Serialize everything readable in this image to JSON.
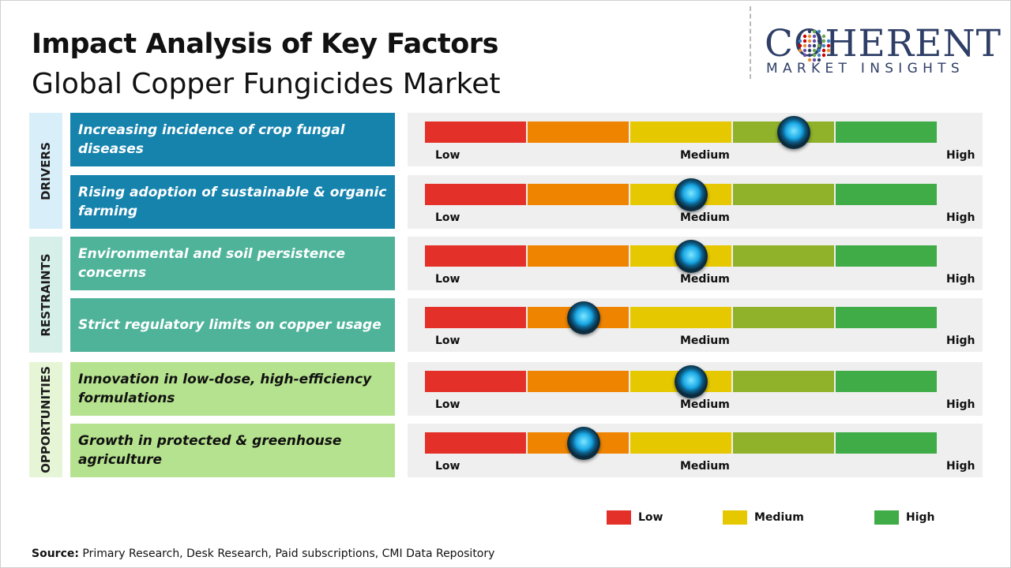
{
  "header": {
    "title": "Impact Analysis of Key Factors",
    "subtitle": "Global Copper Fungicides Market"
  },
  "logo": {
    "main": "COHERENT",
    "sub": "MARKET INSIGHTS"
  },
  "categories": [
    {
      "label": "DRIVERS",
      "color": "#d8eef9"
    },
    {
      "label": "RESTRAINTS",
      "color": "#d6efe9"
    },
    {
      "label": "OPPORTUNITIES",
      "color": "#e6f5d6"
    }
  ],
  "scale_colors": [
    "#e3312a",
    "#ef8400",
    "#e6c800",
    "#8fb22a",
    "#3fac48"
  ],
  "scale_labels": {
    "low": "Low",
    "medium": "Medium",
    "high": "High"
  },
  "factors": [
    {
      "label": "Increasing incidence of crop fungal diseases",
      "category": "DRIVERS",
      "bg": "#1683ad",
      "text_color": "#ffffff"
    },
    {
      "label": "Rising adoption of sustainable & organic farming",
      "category": "DRIVERS",
      "bg": "#1683ad",
      "text_color": "#ffffff"
    },
    {
      "label": "Environmental and soil persistence concerns",
      "category": "RESTRAINTS",
      "bg": "#4fb39a",
      "text_color": "#ffffff"
    },
    {
      "label": "Strict regulatory limits on copper usage",
      "category": "RESTRAINTS",
      "bg": "#4fb39a",
      "text_color": "#ffffff"
    },
    {
      "label": "Innovation in low-dose, high-efficiency formulations",
      "category": "OPPORTUNITIES",
      "bg": "#b5e28e",
      "text_color": "#111111"
    },
    {
      "label": "Growth in protected & greenhouse agriculture",
      "category": "OPPORTUNITIES",
      "bg": "#b5e28e",
      "text_color": "#111111"
    }
  ],
  "chart_data": {
    "type": "gauge",
    "scale": [
      "Low",
      "Medium",
      "High"
    ],
    "scale_range": [
      0,
      1
    ],
    "series": [
      {
        "name": "Increasing incidence of crop fungal diseases",
        "value": 0.72
      },
      {
        "name": "Rising adoption of sustainable & organic farming",
        "value": 0.52
      },
      {
        "name": "Environmental and soil persistence concerns",
        "value": 0.52
      },
      {
        "name": "Strict regulatory limits on copper usage",
        "value": 0.31
      },
      {
        "name": "Innovation in low-dose, high-efficiency formulations",
        "value": 0.52
      },
      {
        "name": "Growth in protected & greenhouse agriculture",
        "value": 0.31
      }
    ]
  },
  "legend": [
    {
      "label": "Low",
      "color": "#e3312a"
    },
    {
      "label": "Medium",
      "color": "#e6c800"
    },
    {
      "label": "High",
      "color": "#3fac48"
    }
  ],
  "source": {
    "label": "Source:",
    "text": " Primary Research, Desk Research, Paid subscriptions, CMI Data Repository"
  }
}
